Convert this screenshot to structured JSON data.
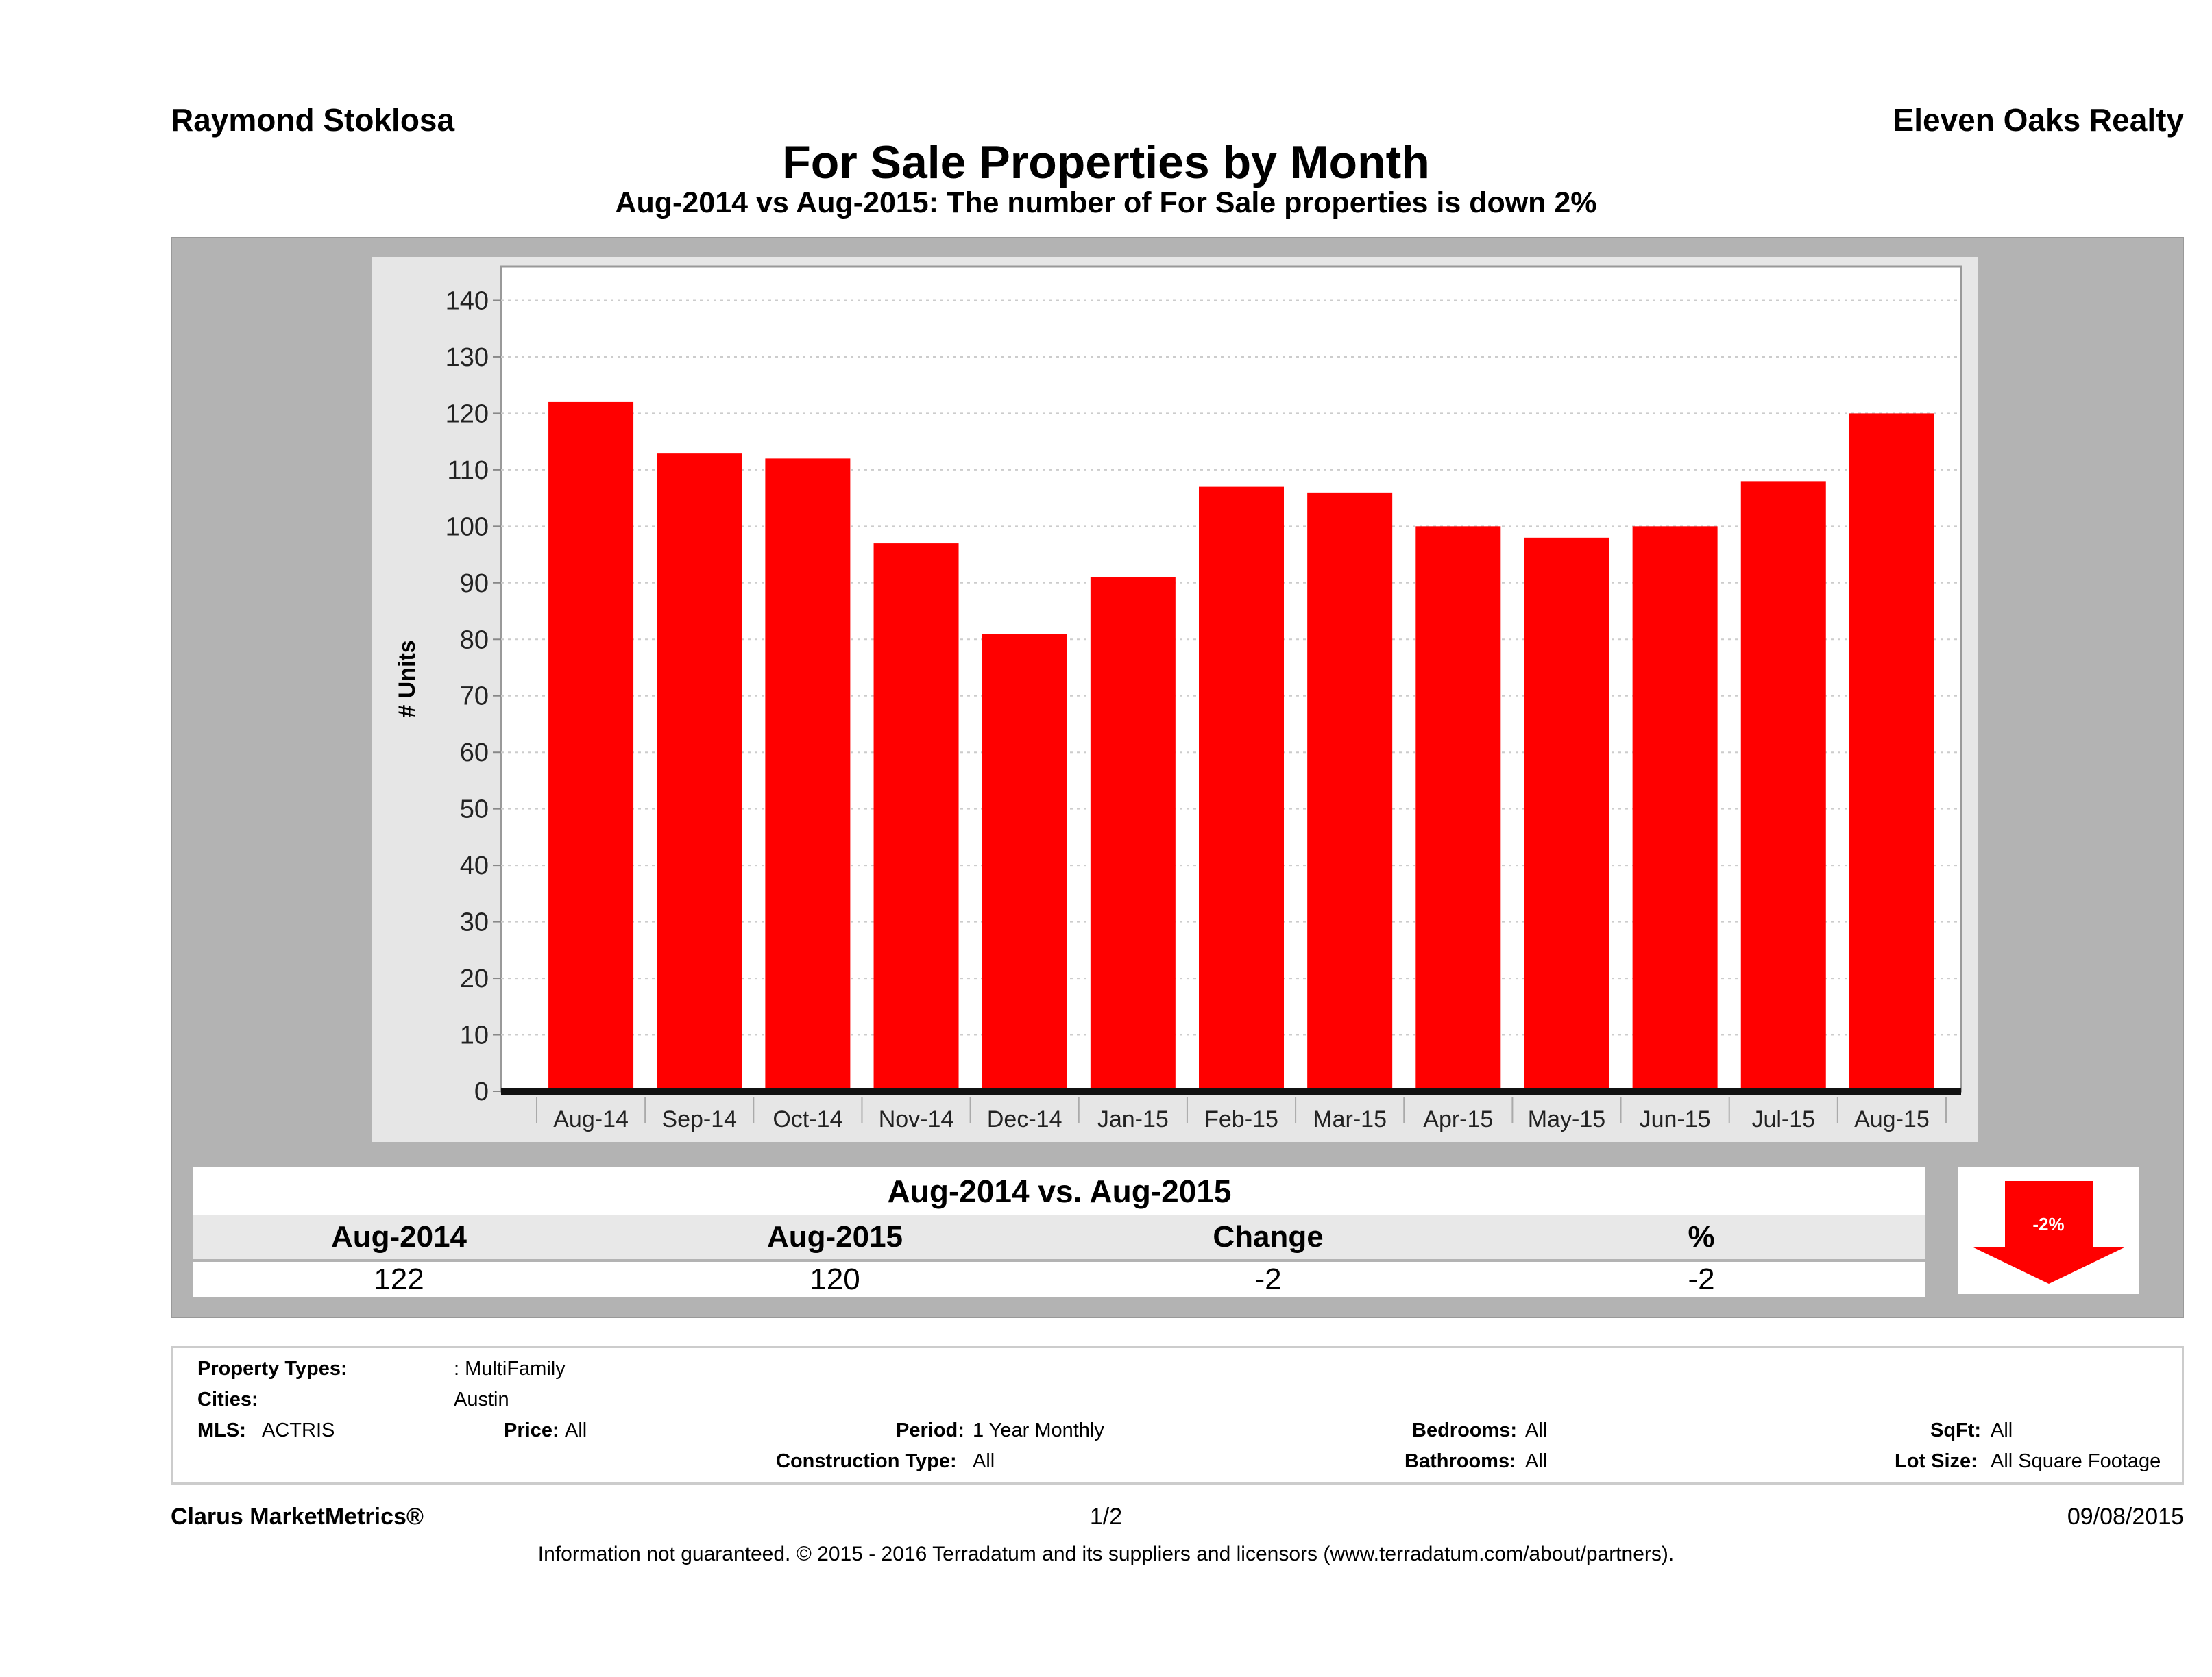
{
  "header": {
    "agent": "Raymond Stoklosa",
    "brokerage": "Eleven Oaks Realty",
    "title": "For Sale Properties by Month",
    "subtitle": "Aug-2014 vs Aug-2015: The number of For Sale  properties is down 2%"
  },
  "chart_data": {
    "type": "bar",
    "title": "For Sale Properties by Month",
    "ylabel": "# Units",
    "xlabel": "",
    "categories": [
      "Aug-14",
      "Sep-14",
      "Oct-14",
      "Nov-14",
      "Dec-14",
      "Jan-15",
      "Feb-15",
      "Mar-15",
      "Apr-15",
      "May-15",
      "Jun-15",
      "Jul-15",
      "Aug-15"
    ],
    "values": [
      122,
      113,
      112,
      97,
      81,
      91,
      107,
      106,
      100,
      98,
      100,
      108,
      120
    ],
    "yticks": [
      0,
      10,
      20,
      30,
      40,
      50,
      60,
      70,
      80,
      90,
      100,
      110,
      120,
      130,
      140
    ],
    "ylim": [
      0,
      146
    ],
    "grid": true,
    "bar_color": "#ff0000"
  },
  "summary": {
    "title": "Aug-2014 vs. Aug-2015",
    "headers": [
      "Aug-2014",
      "Aug-2015",
      "Change",
      "%"
    ],
    "values": [
      "122",
      "120",
      "-2",
      "-2"
    ],
    "badge": "-2%",
    "badge_icon": "down-arrow-icon",
    "badge_color": "#ff0000"
  },
  "info": {
    "property_types_label": "Property Types:",
    "property_types": ": MultiFamily",
    "cities_label": "Cities:",
    "cities": "Austin",
    "mls_label": "MLS:",
    "mls": "ACTRIS",
    "price_label": "Price:",
    "price": "All",
    "period_label": "Period:",
    "period": "1 Year Monthly",
    "bedrooms_label": "Bedrooms:",
    "bedrooms": "All",
    "sqft_label": "SqFt:",
    "sqft": "All",
    "construction_label": "Construction Type:",
    "construction": "All",
    "bathrooms_label": "Bathrooms:",
    "bathrooms": "All",
    "lot_label": "Lot Size:",
    "lot": "All Square Footage"
  },
  "footer": {
    "brand": "Clarus MarketMetrics®",
    "page": "1/2",
    "date": "09/08/2015",
    "disclaimer": "Information not guaranteed. © 2015 - 2016 Terradatum and its suppliers and licensors (www.terradatum.com/about/partners)."
  }
}
